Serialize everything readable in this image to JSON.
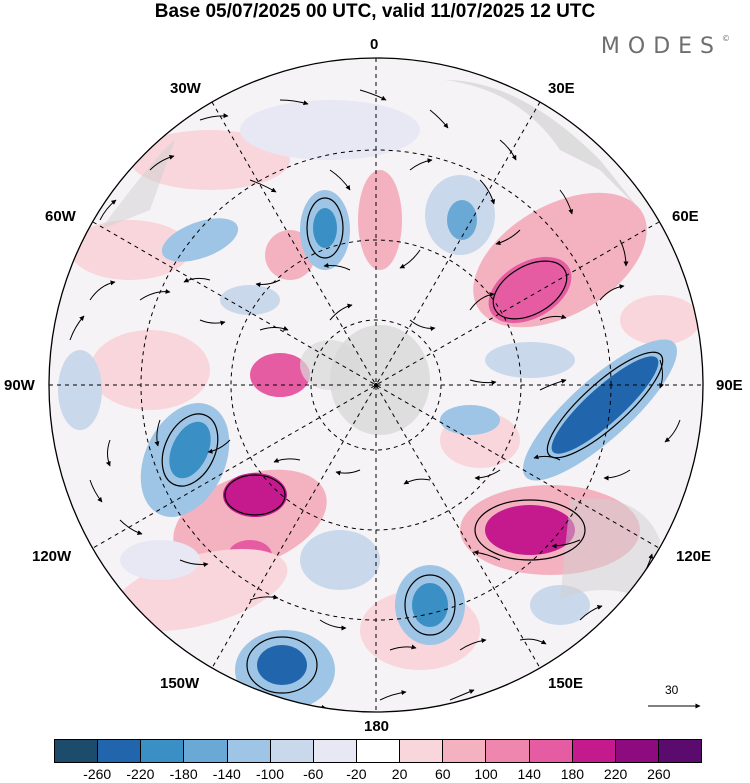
{
  "title": "Base 05/07/2025 00 UTC, valid 11/07/2025 12 UTC",
  "brand": "MODES",
  "brand_mark": "©",
  "longitude_labels": {
    "top": "0",
    "top_left": "30W",
    "top_right": "30E",
    "upper_left": "60W",
    "upper_right": "60E",
    "left": "90W",
    "right": "90E",
    "lower_left": "120W",
    "lower_right": "120E",
    "bottom_left": "150W",
    "bottom_right": "150E",
    "bottom": "180"
  },
  "reference_vector": "30",
  "colorbar": {
    "colors": [
      "#1c4b6b",
      "#2166ac",
      "#3a8fc4",
      "#6aa9d6",
      "#9ec5e5",
      "#cad8ec",
      "#e7e8f3",
      "#ffffff",
      "#f9d6db",
      "#f4b2c0",
      "#ef86ad",
      "#e65ca3",
      "#c41a8e",
      "#8e0a7f",
      "#5b0a6e"
    ],
    "ticks": [
      "-260",
      "-220",
      "-180",
      "-140",
      "-100",
      "-60",
      "-20",
      "20",
      "60",
      "100",
      "140",
      "180",
      "220",
      "260"
    ]
  }
}
